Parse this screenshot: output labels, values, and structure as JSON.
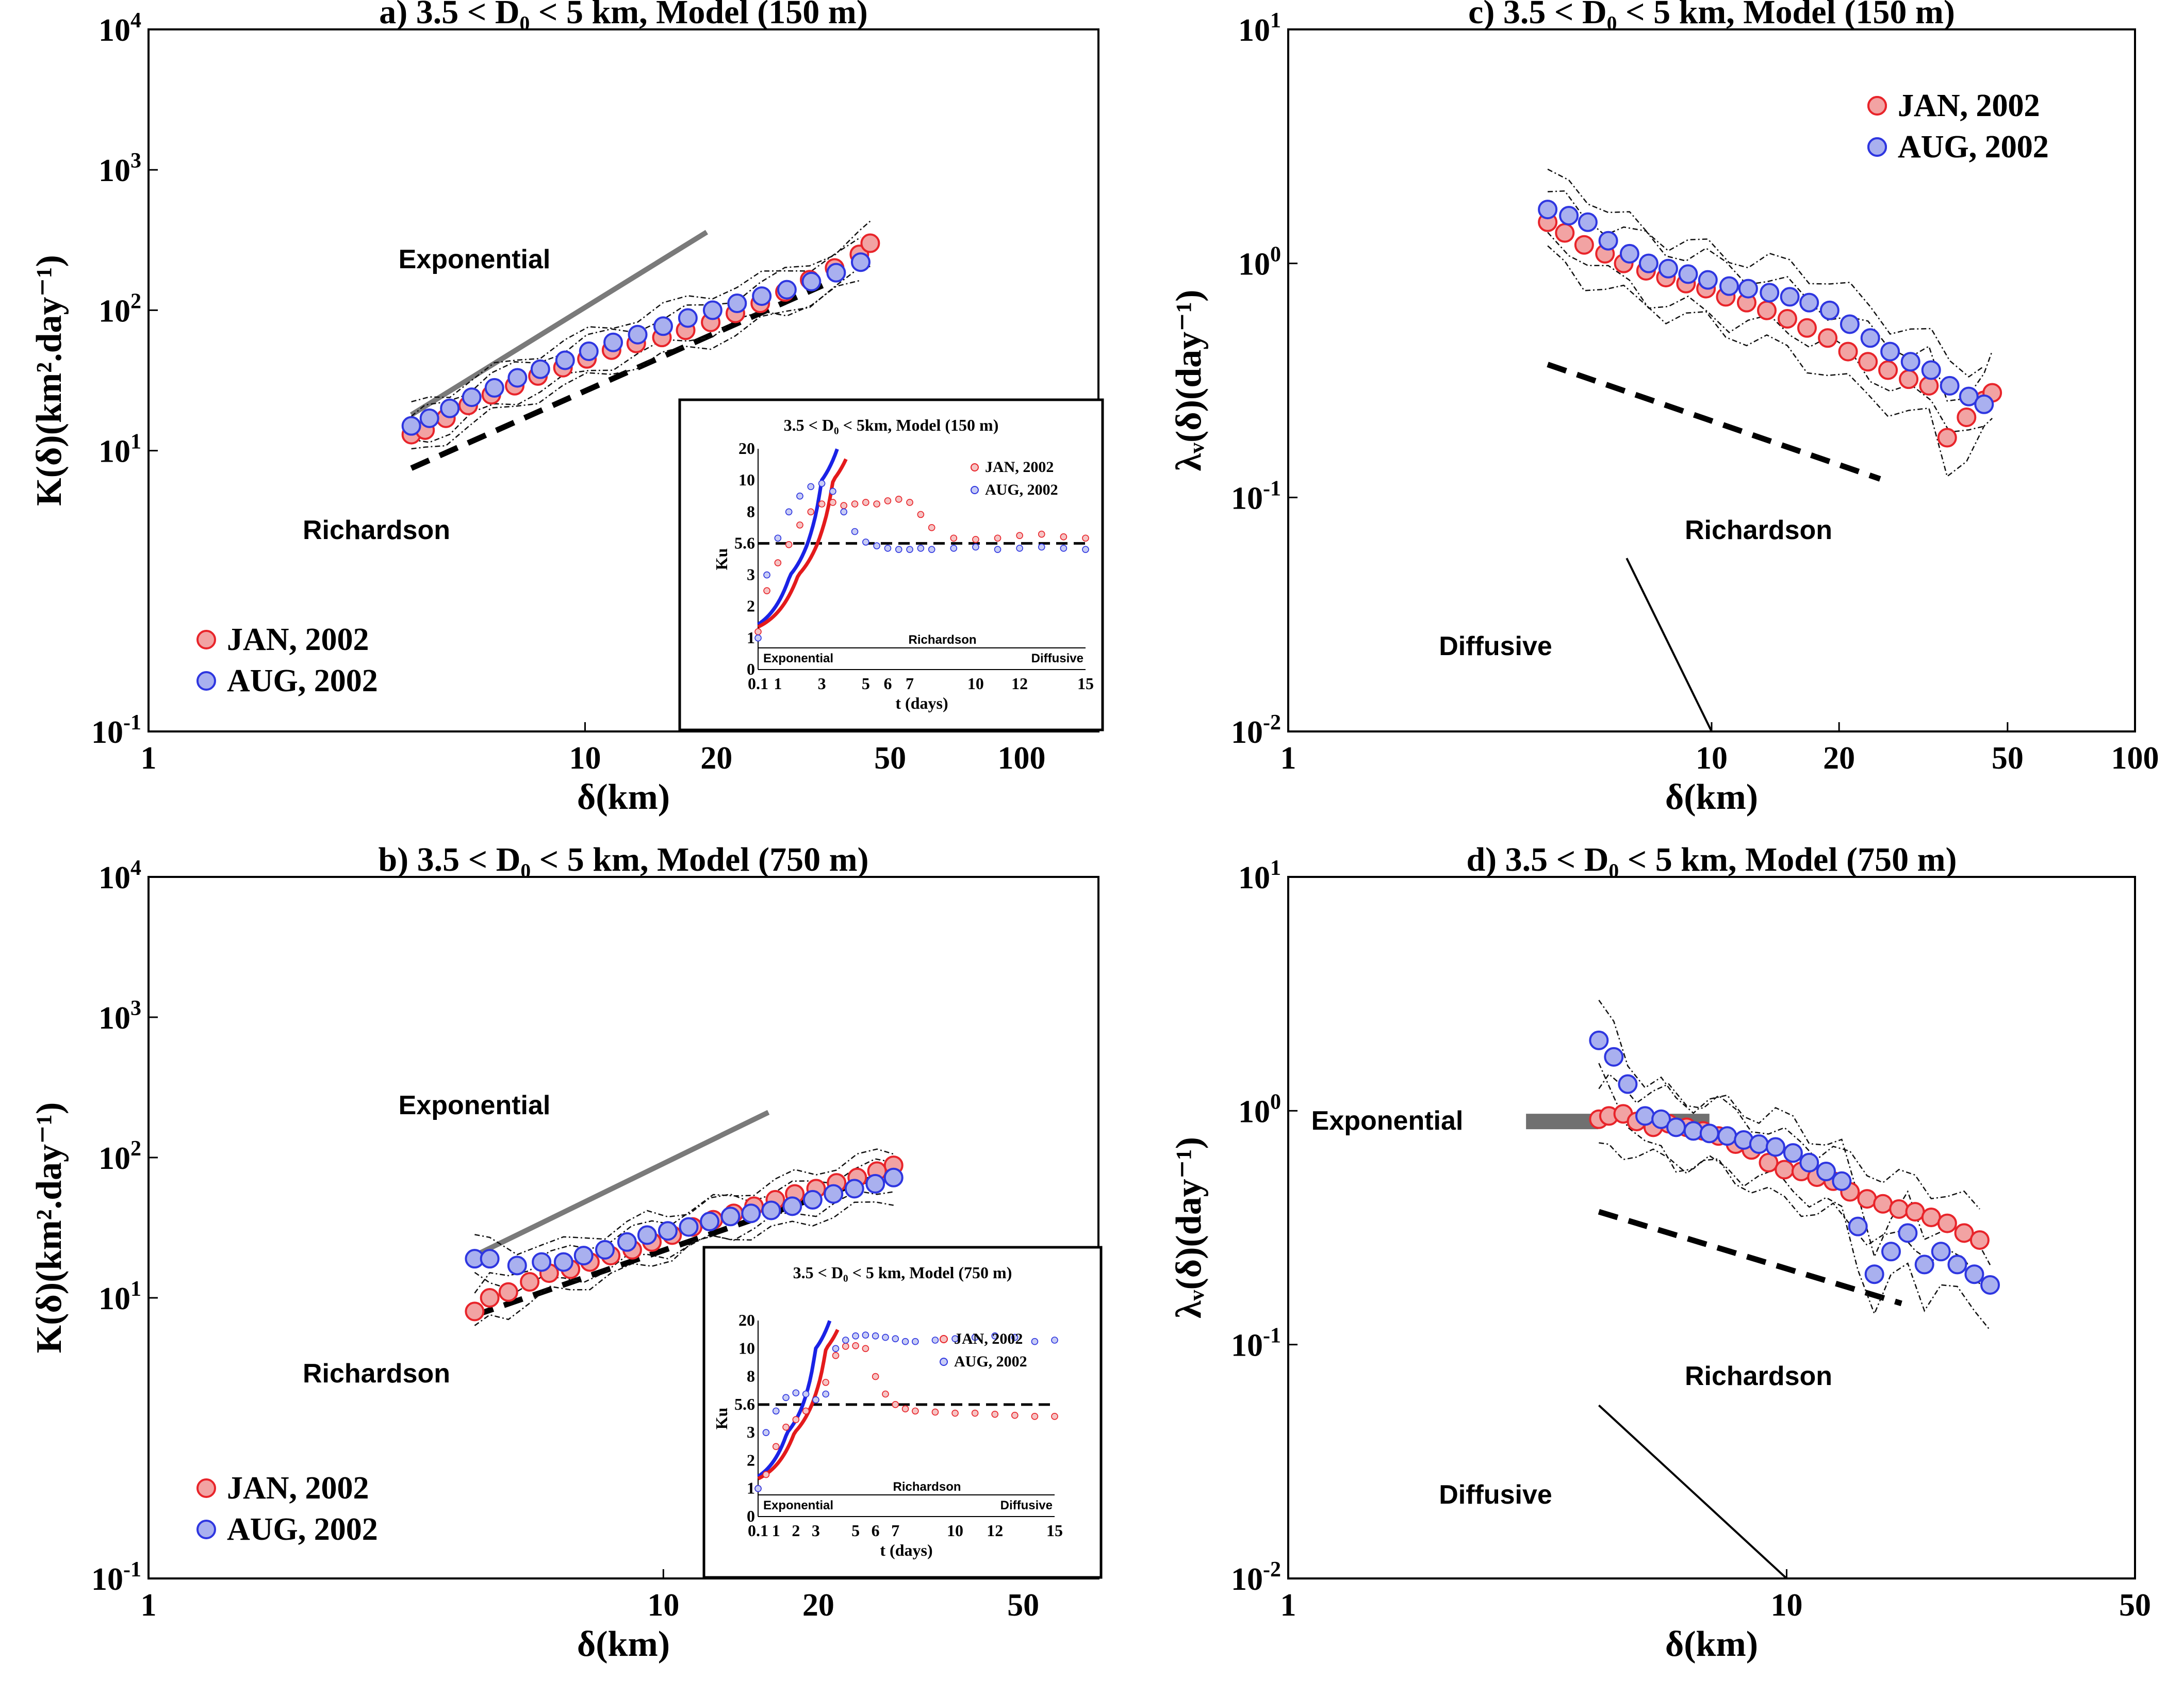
{
  "panels": [
    {
      "id": "a",
      "title": "a) 3.5 < D₀ < 5 km, Model (150 m)",
      "ylabel": "K(δ)(km².day⁻¹)",
      "xlabel": "δ(km)",
      "legend": [
        "JAN, 2002",
        "AUG, 2002"
      ],
      "regime_labels": [
        "Exponential",
        "Richardson"
      ],
      "inset": {
        "title": "3.5 < D₀ < 5km, Model (150 m)",
        "ylabel": "Ku",
        "xlabel": "t (days)",
        "legend": [
          "JAN, 2002",
          "AUG, 2002"
        ],
        "regime_labels": [
          "Exponential",
          "Richardson",
          "Diffusive"
        ]
      }
    },
    {
      "id": "b",
      "title": "b) 3.5 < D₀ < 5 km, Model (750 m)",
      "ylabel": "K(δ)(km².day⁻¹)",
      "xlabel": "δ(km)",
      "legend": [
        "JAN, 2002",
        "AUG, 2002"
      ],
      "regime_labels": [
        "Exponential",
        "Richardson"
      ],
      "inset": {
        "title": "3.5 < D₀ < 5 km, Model (750 m)",
        "ylabel": "Ku",
        "xlabel": "t (days)",
        "legend": [
          "JAN, 2002",
          "AUG, 2002"
        ],
        "regime_labels": [
          "Exponential",
          "Richardson",
          "Diffusive"
        ]
      }
    },
    {
      "id": "c",
      "title": "c) 3.5 < D₀ < 5 km, Model (150 m)",
      "ylabel": "λᵥ(δ)(day⁻¹)",
      "xlabel": "δ(km)",
      "legend": [
        "JAN, 2002",
        "AUG, 2002"
      ],
      "regime_labels": [
        "Richardson",
        "Diffusive"
      ]
    },
    {
      "id": "d",
      "title": "d) 3.5 < D₀ < 5 km, Model (750 m)",
      "ylabel": "λᵥ(δ)(day⁻¹)",
      "xlabel": "δ(km)",
      "legend": [
        "JAN, 2002",
        "AUG, 2002"
      ],
      "regime_labels": [
        "Exponential",
        "Richardson",
        "Diffusive"
      ]
    }
  ],
  "chart_data": [
    {
      "panel": "a",
      "type": "scatter",
      "title": "a) 3.5 < D₀ < 5 km, Model (150 m)",
      "xlabel": "δ(km)",
      "ylabel": "K(δ)(km².day⁻¹)",
      "xscale": "log",
      "yscale": "log",
      "xlim": [
        1,
        150
      ],
      "ylim": [
        0.1,
        10000
      ],
      "xticks": [
        1,
        10,
        20,
        50,
        100
      ],
      "yticks": [
        0.1,
        10,
        100,
        1000,
        10000
      ],
      "xtick_labels": [
        "1",
        "10",
        "20",
        "50",
        "100"
      ],
      "ytick_labels": [
        "10⁻¹",
        "10¹",
        "10²",
        "10³",
        "10⁴"
      ],
      "legend_position": "bottom-left",
      "series": [
        {
          "name": "JAN, 2002",
          "color": "#e8242a",
          "x": [
            4.0,
            4.3,
            4.8,
            5.4,
            6.1,
            6.9,
            7.8,
            8.9,
            10.1,
            11.5,
            13.1,
            15.0,
            17.0,
            19.4,
            22.1,
            25.2,
            28.7,
            32.7,
            37.3,
            42.5,
            45.0
          ],
          "y": [
            13,
            14,
            17,
            21,
            25,
            29,
            34,
            39,
            45,
            52,
            58,
            64,
            72,
            82,
            95,
            112,
            135,
            165,
            200,
            250,
            300
          ]
        },
        {
          "name": "AUG, 2002",
          "color": "#2e36e0",
          "x": [
            4.0,
            4.4,
            4.9,
            5.5,
            6.2,
            7.0,
            7.9,
            9.0,
            10.2,
            11.6,
            13.2,
            15.1,
            17.2,
            19.6,
            22.3,
            25.4,
            29.0,
            33.0,
            37.6,
            42.8
          ],
          "y": [
            15,
            17,
            20,
            24,
            28,
            33,
            38,
            44,
            51,
            59,
            67,
            77,
            88,
            100,
            112,
            126,
            140,
            160,
            185,
            220
          ]
        }
      ],
      "reference_lines": [
        {
          "name": "Exponential",
          "style": "solid gray",
          "x": [
            4.0,
            19.0
          ],
          "y": [
            18,
            360
          ]
        },
        {
          "name": "Richardson",
          "style": "dashed black",
          "x": [
            4.0,
            35.0
          ],
          "y": [
            7.5,
            150
          ]
        }
      ],
      "inset": {
        "type": "scatter",
        "title": "3.5 < D₀ < 5km, Model (150 m)",
        "xlabel": "t (days)",
        "ylabel": "Ku",
        "xticks": [
          0.1,
          1,
          3,
          5,
          6,
          7,
          10,
          12,
          15
        ],
        "yticks": [
          0,
          1,
          2,
          3,
          5.6,
          8,
          10,
          20
        ],
        "hline": 5.6,
        "series": [
          {
            "name": "JAN, 2002",
            "color": "#e8242a",
            "t": [
              0.1,
              0.5,
              1.0,
              1.5,
              2.0,
              2.5,
              3.0,
              3.5,
              4.0,
              4.5,
              5.0,
              5.5,
              6.0,
              6.5,
              7.0,
              7.5,
              8.0,
              9.0,
              10.0,
              11.0,
              12.0,
              13.0,
              14.0,
              15.0
            ],
            "ku": [
              1.2,
              2.5,
              4.0,
              5.5,
              7.0,
              8.0,
              8.5,
              8.6,
              8.4,
              8.5,
              8.6,
              8.5,
              8.7,
              8.8,
              8.6,
              7.8,
              6.8,
              6.0,
              5.9,
              6.0,
              6.2,
              6.3,
              6.1,
              6.0
            ]
          },
          {
            "name": "AUG, 2002",
            "color": "#2e36e0",
            "t": [
              0.1,
              0.5,
              1.0,
              1.5,
              2.0,
              2.5,
              3.0,
              3.5,
              4.0,
              4.5,
              5.0,
              5.5,
              6.0,
              6.5,
              7.0,
              7.5,
              8.0,
              9.0,
              10.0,
              11.0,
              12.0,
              13.0,
              14.0,
              15.0
            ],
            "ku": [
              1.0,
              3.0,
              6.0,
              8.0,
              9.0,
              9.6,
              9.8,
              9.3,
              8.0,
              6.5,
              5.7,
              5.4,
              5.2,
              5.1,
              5.1,
              5.2,
              5.1,
              5.2,
              5.3,
              5.1,
              5.2,
              5.3,
              5.2,
              5.1
            ]
          }
        ]
      }
    },
    {
      "panel": "b",
      "type": "scatter",
      "title": "b) 3.5 < D₀ < 5 km, Model (750 m)",
      "xlabel": "δ(km)",
      "ylabel": "K(δ)(km².day⁻¹)",
      "xscale": "log",
      "yscale": "log",
      "xlim": [
        1,
        70
      ],
      "ylim": [
        0.1,
        10000
      ],
      "xticks": [
        1,
        10,
        20,
        50
      ],
      "yticks": [
        0.1,
        10,
        100,
        1000,
        10000
      ],
      "xtick_labels": [
        "1",
        "10",
        "20",
        "50"
      ],
      "ytick_labels": [
        "10⁻¹",
        "10¹",
        "10²",
        "10³",
        "10⁴"
      ],
      "legend_position": "bottom-left",
      "series": [
        {
          "name": "JAN, 2002",
          "color": "#e8242a",
          "x": [
            4.3,
            4.6,
            5.0,
            5.5,
            6.0,
            6.6,
            7.2,
            7.9,
            8.7,
            9.5,
            10.4,
            11.4,
            12.5,
            13.7,
            15.0,
            16.5,
            18.0,
            19.8,
            21.7,
            23.8,
            26.0,
            28.0
          ],
          "y": [
            8,
            10,
            11,
            13,
            15,
            16,
            18,
            20,
            22,
            25,
            28,
            32,
            36,
            40,
            45,
            50,
            55,
            60,
            66,
            72,
            80,
            88
          ]
        },
        {
          "name": "AUG, 2002",
          "color": "#2e36e0",
          "x": [
            4.3,
            4.6,
            5.2,
            5.8,
            6.4,
            7.0,
            7.7,
            8.5,
            9.3,
            10.2,
            11.2,
            12.3,
            13.5,
            14.8,
            16.2,
            17.8,
            19.5,
            21.4,
            23.5,
            25.8,
            28.0
          ],
          "y": [
            19,
            19,
            17,
            18,
            18,
            20,
            22,
            25,
            28,
            30,
            32,
            35,
            38,
            40,
            42,
            45,
            50,
            55,
            60,
            65,
            72
          ]
        }
      ],
      "reference_lines": [
        {
          "name": "Exponential",
          "style": "solid gray",
          "x": [
            4.3,
            16.0
          ],
          "y": [
            20,
            210
          ]
        },
        {
          "name": "Richardson",
          "style": "dashed black",
          "x": [
            4.3,
            28.0
          ],
          "y": [
            7.5,
            80
          ]
        }
      ],
      "inset": {
        "type": "scatter",
        "title": "3.5 < D₀ < 5 km, Model (750 m)",
        "xlabel": "t (days)",
        "ylabel": "Ku",
        "xticks": [
          0.1,
          1,
          2,
          3,
          5,
          6,
          7,
          10,
          12,
          15
        ],
        "yticks": [
          0,
          1,
          2,
          3,
          5.6,
          8,
          10,
          20
        ],
        "hline": 5.6,
        "series": [
          {
            "name": "JAN, 2002",
            "color": "#e8242a",
            "t": [
              0.1,
              0.5,
              1.0,
              1.5,
              2.0,
              2.5,
              3.0,
              3.5,
              4.0,
              4.5,
              5.0,
              5.5,
              6.0,
              6.5,
              7.0,
              7.5,
              8.0,
              9.0,
              10.0,
              11.0,
              12.0,
              13.0,
              14.0,
              15.0
            ],
            "ku": [
              1.0,
              1.5,
              2.5,
              3.5,
              4.2,
              5.0,
              6.0,
              7.5,
              9.5,
              10.8,
              11.0,
              10.0,
              8.0,
              6.5,
              5.6,
              5.2,
              5.0,
              4.9,
              4.8,
              4.8,
              4.7,
              4.6,
              4.5,
              4.5
            ]
          },
          {
            "name": "AUG, 2002",
            "color": "#2e36e0",
            "t": [
              0.1,
              0.5,
              1.0,
              1.5,
              2.0,
              2.5,
              3.0,
              3.5,
              4.0,
              4.5,
              5.0,
              5.5,
              6.0,
              6.5,
              7.0,
              7.5,
              8.0,
              9.0,
              10.0,
              11.0,
              12.0,
              13.0,
              14.0,
              15.0
            ],
            "ku": [
              1.0,
              3.0,
              5.0,
              6.2,
              6.6,
              6.5,
              6.0,
              6.5,
              10.0,
              13.0,
              14.5,
              14.8,
              14.5,
              14.0,
              13.5,
              12.5,
              12.5,
              13.0,
              13.5,
              14.0,
              14.5,
              14.0,
              12.5,
              13.0
            ]
          }
        ]
      }
    },
    {
      "panel": "c",
      "type": "scatter",
      "title": "c) 3.5 < D₀ < 5 km, Model (150 m)",
      "xlabel": "δ(km)",
      "ylabel": "λᵥ(δ)(day⁻¹)",
      "xscale": "log",
      "yscale": "log",
      "xlim": [
        1,
        100
      ],
      "ylim": [
        0.01,
        10
      ],
      "xticks": [
        1,
        10,
        20,
        50,
        100
      ],
      "yticks": [
        0.01,
        0.1,
        1,
        10
      ],
      "xtick_labels": [
        "1",
        "10",
        "20",
        "50",
        "100"
      ],
      "ytick_labels": [
        "10⁻²",
        "10⁻¹",
        "10⁰",
        "10¹"
      ],
      "legend_position": "top-right",
      "series": [
        {
          "name": "JAN, 2002",
          "color": "#e8242a",
          "x": [
            4.1,
            4.5,
            5.0,
            5.6,
            6.2,
            7.0,
            7.8,
            8.7,
            9.7,
            10.8,
            12.1,
            13.5,
            15.1,
            16.8,
            18.8,
            21.0,
            23.4,
            26.1,
            29.2,
            32.6,
            36.0,
            40.0,
            44.0,
            46.0
          ],
          "y": [
            1.5,
            1.35,
            1.2,
            1.1,
            1.0,
            0.93,
            0.87,
            0.82,
            0.78,
            0.72,
            0.68,
            0.63,
            0.58,
            0.53,
            0.48,
            0.42,
            0.38,
            0.35,
            0.32,
            0.3,
            0.18,
            0.22,
            0.26,
            0.28
          ]
        },
        {
          "name": "AUG, 2002",
          "color": "#2e36e0",
          "x": [
            4.1,
            4.6,
            5.1,
            5.7,
            6.4,
            7.1,
            7.9,
            8.8,
            9.8,
            11.0,
            12.2,
            13.7,
            15.3,
            17.0,
            19.0,
            21.2,
            23.7,
            26.4,
            29.5,
            33.0,
            36.5,
            40.5,
            44.0
          ],
          "y": [
            1.7,
            1.6,
            1.5,
            1.25,
            1.1,
            1.0,
            0.95,
            0.9,
            0.85,
            0.8,
            0.78,
            0.75,
            0.72,
            0.68,
            0.63,
            0.55,
            0.48,
            0.42,
            0.38,
            0.35,
            0.3,
            0.27,
            0.25
          ]
        }
      ],
      "reference_lines": [
        {
          "name": "Richardson",
          "style": "dashed black",
          "x": [
            4.1,
            25.0
          ],
          "y": [
            0.37,
            0.12
          ]
        },
        {
          "name": "Diffusive",
          "style": "thin solid black",
          "x": [
            6.3,
            10.0
          ],
          "y": [
            0.055,
            0.01
          ]
        }
      ]
    },
    {
      "panel": "d",
      "type": "scatter",
      "title": "d) 3.5 < D₀ < 5 km, Model (750 m)",
      "xlabel": "δ(km)",
      "ylabel": "λᵥ(δ)(day⁻¹)",
      "xscale": "log",
      "yscale": "log",
      "xlim": [
        1,
        50
      ],
      "ylim": [
        0.01,
        10
      ],
      "xticks": [
        1,
        10,
        50
      ],
      "yticks": [
        0.01,
        0.1,
        1,
        10
      ],
      "xtick_labels": [
        "1",
        "10",
        "50"
      ],
      "ytick_labels": [
        "10⁻²",
        "10⁻¹",
        "10⁰",
        "10¹"
      ],
      "legend_position": "top-right",
      "series": [
        {
          "name": "JAN, 2002",
          "color": "#e8242a",
          "x": [
            4.2,
            4.4,
            4.7,
            5.0,
            5.4,
            5.8,
            6.3,
            6.8,
            7.3,
            7.9,
            8.5,
            9.2,
            9.9,
            10.7,
            11.5,
            12.4,
            13.4,
            14.5,
            15.6,
            16.8,
            18.1,
            19.5,
            21.0,
            22.7,
            24.4
          ],
          "y": [
            0.92,
            0.95,
            0.97,
            0.9,
            0.85,
            0.88,
            0.85,
            0.82,
            0.78,
            0.72,
            0.68,
            0.6,
            0.56,
            0.55,
            0.52,
            0.5,
            0.45,
            0.42,
            0.4,
            0.38,
            0.37,
            0.35,
            0.33,
            0.3,
            0.28
          ]
        },
        {
          "name": "AUG, 2002",
          "color": "#2e36e0",
          "x": [
            4.2,
            4.5,
            4.8,
            5.2,
            5.6,
            6.0,
            6.5,
            7.0,
            7.6,
            8.2,
            8.8,
            9.5,
            10.3,
            11.1,
            12.0,
            12.9,
            13.9,
            15.0,
            16.2,
            17.5,
            18.9,
            20.4,
            22.0,
            23.8,
            25.6
          ],
          "y": [
            2.0,
            1.7,
            1.3,
            0.95,
            0.92,
            0.85,
            0.82,
            0.8,
            0.78,
            0.75,
            0.72,
            0.7,
            0.66,
            0.6,
            0.55,
            0.5,
            0.32,
            0.2,
            0.25,
            0.3,
            0.22,
            0.25,
            0.22,
            0.2,
            0.18
          ]
        }
      ],
      "reference_lines": [
        {
          "name": "Exponential",
          "style": "thick gray",
          "x": [
            3.0,
            7.0
          ],
          "y": [
            0.9,
            0.9
          ]
        },
        {
          "name": "Richardson",
          "style": "dashed black",
          "x": [
            4.2,
            17.0
          ],
          "y": [
            0.37,
            0.15
          ]
        },
        {
          "name": "Diffusive",
          "style": "thin solid black",
          "x": [
            4.2,
            10.0
          ],
          "y": [
            0.055,
            0.01
          ]
        }
      ]
    }
  ]
}
